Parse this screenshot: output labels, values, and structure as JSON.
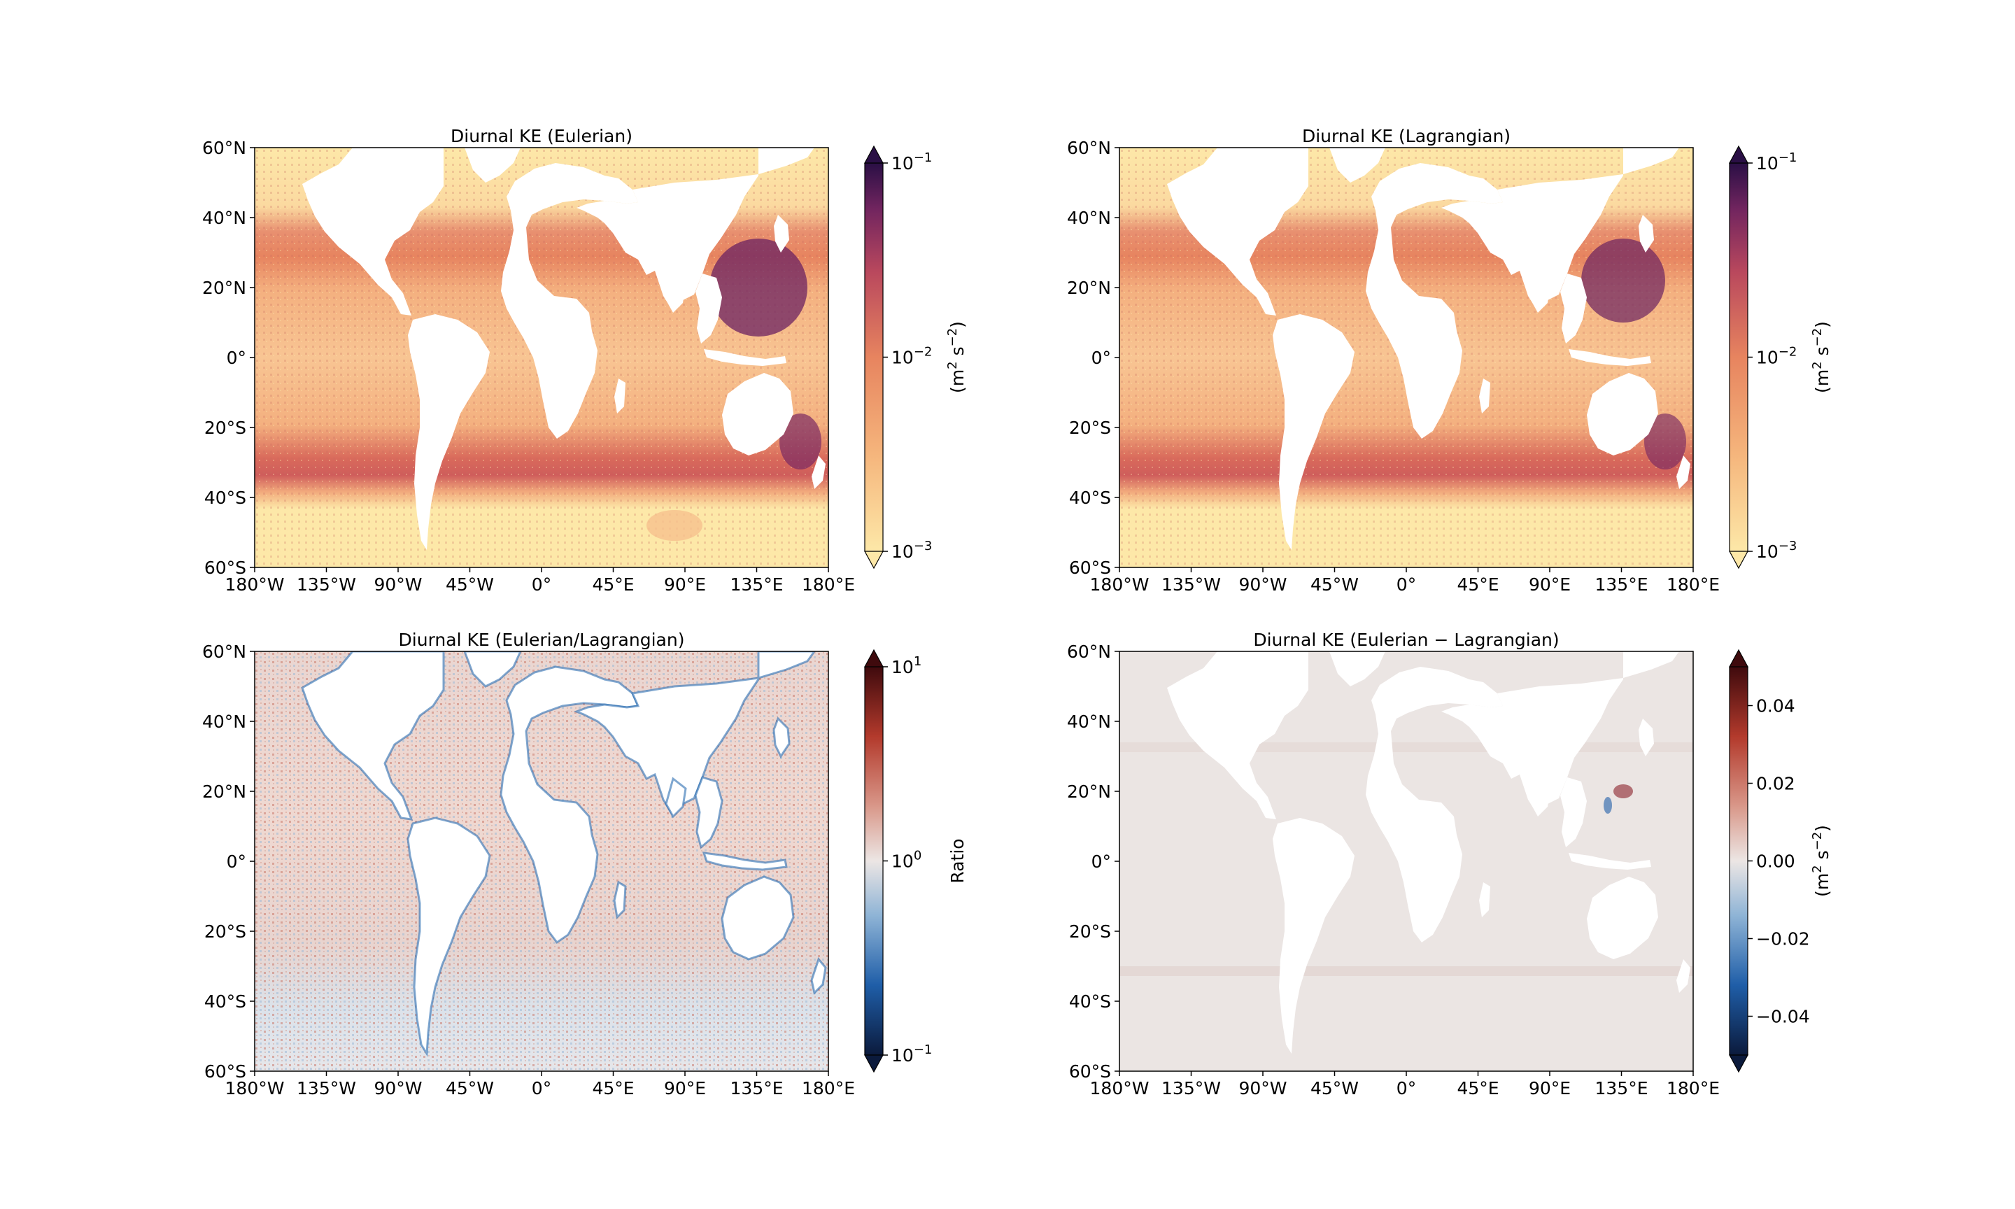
{
  "panels": [
    {
      "id": "eulerian",
      "title": "Diurnal KE (Eulerian)",
      "colormap": "sequential-warm",
      "colorbar": {
        "scale": "log",
        "ticks": [
          {
            "base": "10",
            "exp": "−1"
          },
          {
            "base": "10",
            "exp": "−2"
          },
          {
            "base": "10",
            "exp": "−3"
          }
        ],
        "label": {
          "pre": "(m",
          "sup1": "2",
          "mid": " s",
          "sup2": "−2",
          "post": ")"
        },
        "top_color": "#2a0f45",
        "bottom_color": "#fde8a8"
      }
    },
    {
      "id": "lagrangian",
      "title": "Diurnal KE (Lagrangian)",
      "colormap": "sequential-warm",
      "colorbar": {
        "scale": "log",
        "ticks": [
          {
            "base": "10",
            "exp": "−1"
          },
          {
            "base": "10",
            "exp": "−2"
          },
          {
            "base": "10",
            "exp": "−3"
          }
        ],
        "label": {
          "pre": "(m",
          "sup1": "2",
          "mid": " s",
          "sup2": "−2",
          "post": ")"
        },
        "top_color": "#2a0f45",
        "bottom_color": "#fde8a8"
      }
    },
    {
      "id": "ratio",
      "title": "Diurnal KE (Eulerian/Lagrangian)",
      "colormap": "diverging-blue-red",
      "colorbar": {
        "scale": "log",
        "ticks": [
          {
            "base": "10",
            "exp": "1"
          },
          {
            "base": "10",
            "exp": "0"
          },
          {
            "base": "10",
            "exp": "−1"
          }
        ],
        "label_text": "Ratio",
        "top_color": "#3f0a0d",
        "bottom_color": "#0b1a3c"
      }
    },
    {
      "id": "difference",
      "title": "Diurnal KE (Eulerian − Lagrangian)",
      "colormap": "diverging-blue-red",
      "colorbar": {
        "scale": "linear",
        "range": [
          -0.05,
          0.05
        ],
        "ticks": [
          "0.04",
          "0.02",
          "0.00",
          "−0.02",
          "−0.04"
        ],
        "label": {
          "pre": "(m",
          "sup1": "2",
          "mid": " s",
          "sup2": "−2",
          "post": ")"
        },
        "top_color": "#3f0a0d",
        "bottom_color": "#0b1a3c"
      }
    }
  ],
  "lat_ticks": [
    "60°N",
    "40°N",
    "20°N",
    "0°",
    "20°S",
    "40°S",
    "60°S"
  ],
  "lon_ticks": [
    "180°W",
    "135°W",
    "90°W",
    "45°W",
    "0°",
    "45°E",
    "90°E",
    "135°E",
    "180°E"
  ],
  "colors": {
    "land": "#ffffff",
    "seq_low": "#fde8a8",
    "seq_mid": "#e7845f",
    "seq_high": "#5a1e63",
    "div_neutral": "#ece6e4",
    "div_red": "#b33a2c",
    "div_blue": "#1f5ea8"
  }
}
